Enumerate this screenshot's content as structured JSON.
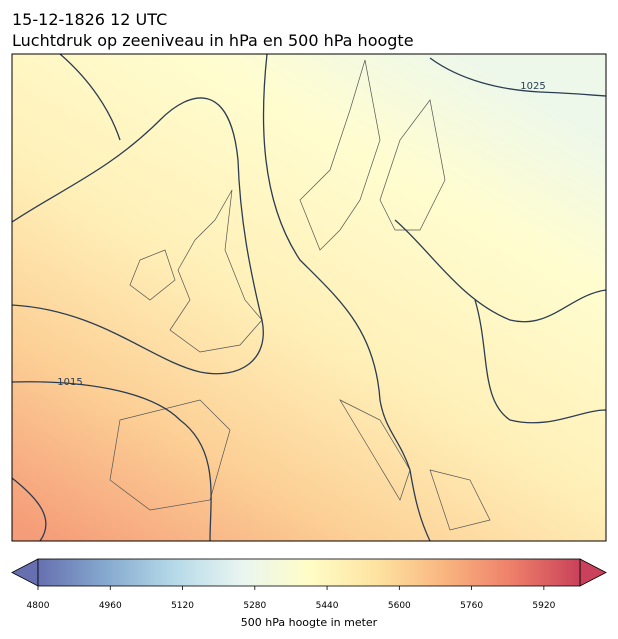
{
  "header": {
    "title": "15-12-1826 12 UTC",
    "subtitle": "Luchtdruk op zeeniveau in hPa en 500 hPa hoogte"
  },
  "map": {
    "isobar_labels": [
      "1025",
      "1015"
    ]
  },
  "colorbar": {
    "label": "500 hPa hoogte in meter",
    "clim": [
      4800,
      6000
    ],
    "ticks": [
      4800,
      4960,
      5120,
      5280,
      5440,
      5600,
      5760,
      5920
    ],
    "colors": [
      "#6670b0",
      "#86a9cf",
      "#b5d9e8",
      "#e9f5f1",
      "#fffdc6",
      "#fde3a1",
      "#f9b57f",
      "#ee7f6a",
      "#c9415a"
    ]
  }
}
